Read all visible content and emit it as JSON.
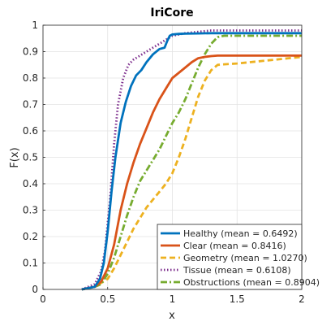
{
  "chart_data": {
    "type": "line",
    "title": "IriCore",
    "xlabel": "x",
    "ylabel": "F(x)",
    "xlim": [
      0,
      2
    ],
    "ylim": [
      0,
      1
    ],
    "xticks": [
      "0",
      "0.5",
      "1",
      "1.5",
      "2"
    ],
    "yticks": [
      "0",
      "0.1",
      "0.2",
      "0.3",
      "0.4",
      "0.5",
      "0.6",
      "0.7",
      "0.8",
      "0.9",
      "1"
    ],
    "grid": true,
    "legend_position": "bottom-right",
    "series": [
      {
        "name": "Healthy (mean = 0.6492)",
        "color": "#0072BD",
        "dash": "solid",
        "x": [
          0.3,
          0.4,
          0.44,
          0.47,
          0.5,
          0.53,
          0.56,
          0.6,
          0.64,
          0.68,
          0.72,
          0.76,
          0.8,
          0.85,
          0.9,
          0.94,
          0.96,
          0.98,
          1.0,
          1.05,
          1.1,
          1.2,
          1.3,
          1.4,
          1.5,
          2.0
        ],
        "y": [
          0.0,
          0.01,
          0.04,
          0.1,
          0.22,
          0.37,
          0.5,
          0.63,
          0.71,
          0.77,
          0.81,
          0.83,
          0.86,
          0.89,
          0.91,
          0.915,
          0.94,
          0.96,
          0.965,
          0.967,
          0.968,
          0.969,
          0.97,
          0.97,
          0.97,
          0.97
        ]
      },
      {
        "name": "Clear (mean = 0.8416)",
        "color": "#D95319",
        "dash": "solid",
        "x": [
          0.3,
          0.4,
          0.45,
          0.5,
          0.55,
          0.6,
          0.65,
          0.7,
          0.75,
          0.8,
          0.85,
          0.9,
          0.95,
          1.0,
          1.05,
          1.1,
          1.15,
          1.2,
          1.25,
          1.3,
          1.35,
          1.4,
          1.5,
          2.0
        ],
        "y": [
          0.0,
          0.01,
          0.03,
          0.08,
          0.17,
          0.3,
          0.4,
          0.48,
          0.55,
          0.61,
          0.67,
          0.72,
          0.76,
          0.8,
          0.82,
          0.84,
          0.86,
          0.875,
          0.88,
          0.883,
          0.885,
          0.885,
          0.885,
          0.885
        ]
      },
      {
        "name": "Geometry (mean = 1.0270)",
        "color": "#EDB120",
        "dash": "dashed",
        "x": [
          0.3,
          0.4,
          0.5,
          0.55,
          0.6,
          0.65,
          0.7,
          0.75,
          0.8,
          0.85,
          0.9,
          0.95,
          1.0,
          1.05,
          1.1,
          1.15,
          1.2,
          1.25,
          1.3,
          1.35,
          1.4,
          1.5,
          1.6,
          1.7,
          1.8,
          1.9,
          2.0
        ],
        "y": [
          0.0,
          0.01,
          0.04,
          0.08,
          0.13,
          0.18,
          0.23,
          0.27,
          0.31,
          0.34,
          0.37,
          0.4,
          0.44,
          0.5,
          0.57,
          0.65,
          0.73,
          0.79,
          0.83,
          0.85,
          0.852,
          0.855,
          0.86,
          0.865,
          0.87,
          0.875,
          0.88
        ]
      },
      {
        "name": "Tissue (mean = 0.6108)",
        "color": "#7E2F8E",
        "dash": "dotted",
        "x": [
          0.3,
          0.4,
          0.45,
          0.48,
          0.52,
          0.55,
          0.58,
          0.62,
          0.66,
          0.7,
          0.75,
          0.8,
          0.85,
          0.9,
          0.95,
          1.0,
          1.1,
          1.2,
          1.3,
          1.4,
          2.0
        ],
        "y": [
          0.0,
          0.02,
          0.07,
          0.15,
          0.35,
          0.55,
          0.7,
          0.8,
          0.85,
          0.87,
          0.885,
          0.9,
          0.915,
          0.93,
          0.945,
          0.96,
          0.97,
          0.975,
          0.98,
          0.98,
          0.98
        ]
      },
      {
        "name": "Obstructions (mean = 0.8904)",
        "color": "#77AC30",
        "dash": "dashdot",
        "x": [
          0.3,
          0.4,
          0.45,
          0.5,
          0.55,
          0.6,
          0.65,
          0.7,
          0.75,
          0.8,
          0.85,
          0.9,
          0.95,
          1.0,
          1.05,
          1.1,
          1.15,
          1.2,
          1.25,
          1.3,
          1.35,
          1.4,
          1.5,
          1.6,
          1.8,
          2.0
        ],
        "y": [
          0.0,
          0.01,
          0.02,
          0.06,
          0.12,
          0.2,
          0.28,
          0.35,
          0.41,
          0.45,
          0.49,
          0.53,
          0.58,
          0.63,
          0.67,
          0.72,
          0.78,
          0.84,
          0.89,
          0.93,
          0.955,
          0.96,
          0.96,
          0.96,
          0.96,
          0.96
        ]
      }
    ]
  }
}
